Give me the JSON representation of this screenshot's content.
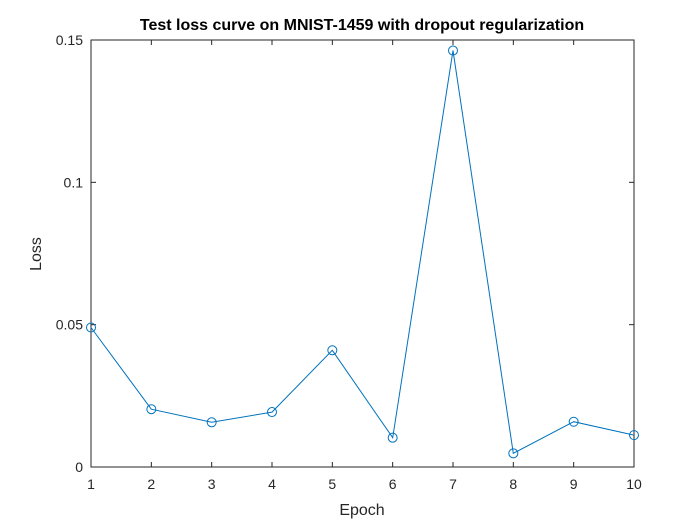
{
  "chart_data": {
    "type": "line",
    "title": "Test loss curve on MNIST-1459 with dropout regularization",
    "xlabel": "Epoch",
    "ylabel": "Loss",
    "xlim": [
      1,
      10
    ],
    "ylim": [
      0,
      0.15
    ],
    "x_ticks": [
      "1",
      "2",
      "3",
      "4",
      "5",
      "6",
      "7",
      "8",
      "9",
      "10"
    ],
    "y_ticks": [
      "0",
      "0.05",
      "0.1",
      "0.15"
    ],
    "y_tick_values": [
      0,
      0.05,
      0.1,
      0.15
    ],
    "grid": false,
    "legend": "none",
    "series": [
      {
        "x": [
          1,
          2,
          3,
          4,
          5,
          6,
          7,
          8,
          9,
          10
        ],
        "values": [
          0.049,
          0.0203,
          0.0157,
          0.0193,
          0.041,
          0.0103,
          0.1463,
          0.0048,
          0.0159,
          0.0112
        ],
        "color": "#0072BD",
        "marker": "circle"
      }
    ]
  }
}
